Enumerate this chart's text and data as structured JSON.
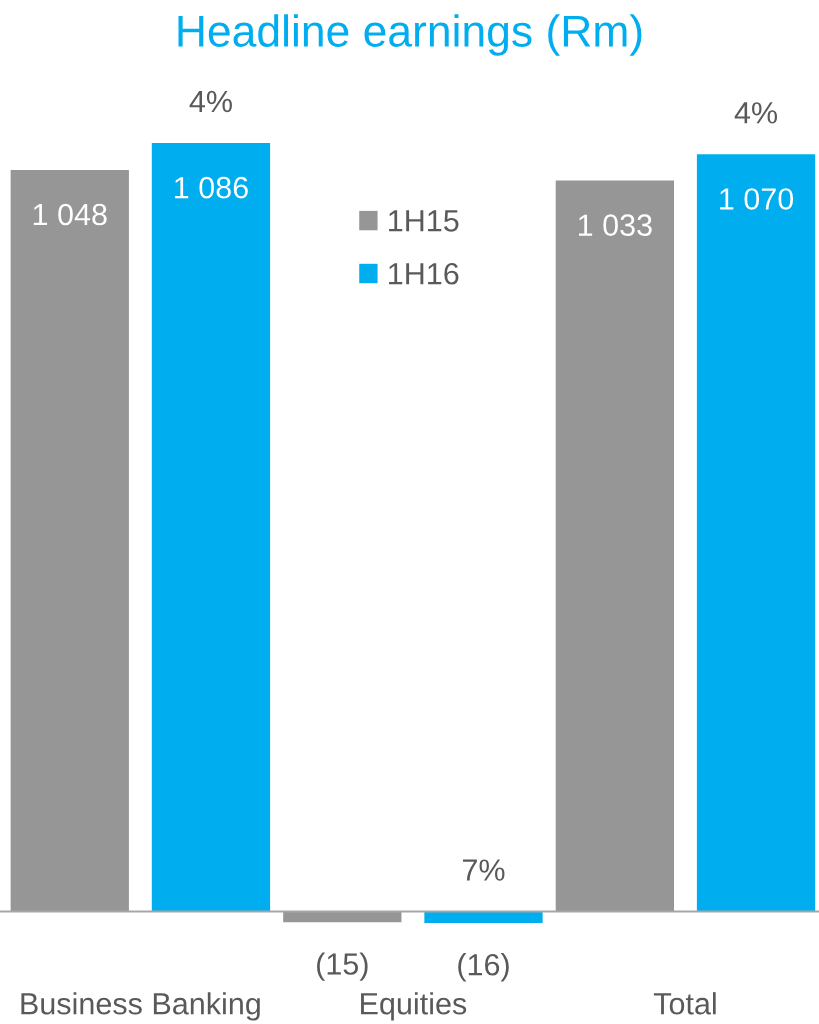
{
  "chart_data": {
    "type": "bar",
    "title": "Headline earnings (Rm)",
    "categories": [
      "Business Banking",
      "Equities",
      "Total"
    ],
    "series": [
      {
        "name": "1H15",
        "color": "#969696",
        "values": [
          1048,
          -15,
          1033
        ],
        "value_labels": [
          "1 048",
          "(15)",
          "1 033"
        ]
      },
      {
        "name": "1H16",
        "color": "#00aeef",
        "values": [
          1086,
          -16,
          1070
        ],
        "value_labels": [
          "1 086",
          "(16)",
          "1 070"
        ]
      }
    ],
    "annotations": [
      "4%",
      "7%",
      "4%"
    ],
    "legend": "top"
  }
}
